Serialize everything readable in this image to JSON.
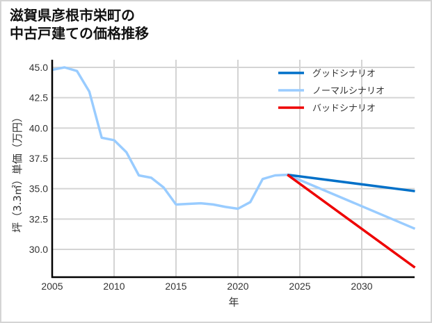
{
  "chart_data": {
    "type": "line",
    "title": "滋賀県彦根市栄町の中古戸建ての価格推移",
    "title_lines": [
      "滋賀県彦根市栄町の",
      "中古戸建ての価格推移"
    ],
    "xlabel": "年",
    "ylabel": "坪（3.3㎡）単価（万円）",
    "xlim": [
      2005,
      2034.3
    ],
    "ylim": [
      27.8,
      46.0
    ],
    "x_ticks": [
      2005,
      2010,
      2015,
      2020,
      2025,
      2030
    ],
    "y_ticks": [
      30.0,
      32.5,
      35.0,
      37.5,
      40.0,
      42.5,
      45.0
    ],
    "x_tick_labels": [
      "2005",
      "2010",
      "2015",
      "2020",
      "2025",
      "2030"
    ],
    "y_tick_labels": [
      "30.0",
      "32.5",
      "35.0",
      "37.5",
      "40.0",
      "42.5",
      "45.0"
    ],
    "grid": true,
    "legend_position": "upper right",
    "series": [
      {
        "name": "グッドシナリオ",
        "color": "#0070c8",
        "x": [
          2024,
          2034.3
        ],
        "values": [
          36.15,
          34.8
        ]
      },
      {
        "name": "ノーマルシナリオ",
        "color": "#99ccff",
        "x": [
          2005,
          2006,
          2007,
          2008,
          2009,
          2010,
          2011,
          2012,
          2013,
          2014,
          2015,
          2016,
          2017,
          2018,
          2019,
          2020,
          2021,
          2022,
          2023,
          2024,
          2034.3
        ],
        "values": [
          44.8,
          45.0,
          44.7,
          43.0,
          39.2,
          39.0,
          38.0,
          36.1,
          35.9,
          35.1,
          33.7,
          33.75,
          33.8,
          33.7,
          33.5,
          33.35,
          33.9,
          35.8,
          36.1,
          36.15,
          31.7
        ]
      },
      {
        "name": "バッドシナリオ",
        "color": "#ee0000",
        "x": [
          2024,
          2034.3
        ],
        "values": [
          36.15,
          28.5
        ]
      }
    ]
  }
}
